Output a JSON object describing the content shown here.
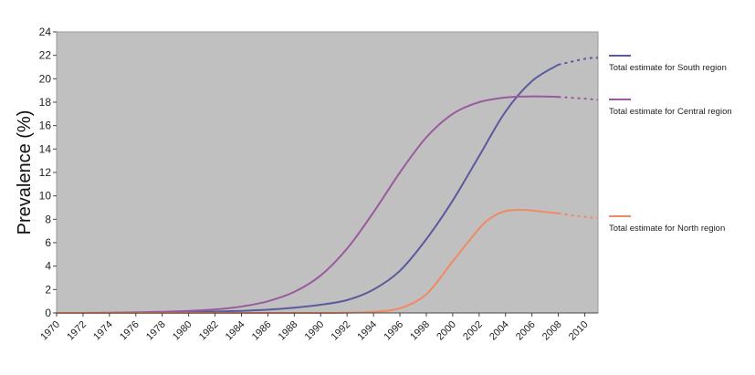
{
  "chart_data": {
    "type": "line",
    "title": "",
    "xlabel": "",
    "ylabel": "Prevalence (%)",
    "xlim": [
      1970,
      2011
    ],
    "ylim": [
      0,
      24
    ],
    "yticks": [
      0,
      2,
      4,
      6,
      8,
      10,
      12,
      14,
      16,
      18,
      20,
      22,
      24
    ],
    "xticks": [
      1970,
      1972,
      1974,
      1976,
      1978,
      1980,
      1982,
      1984,
      1986,
      1988,
      1990,
      1992,
      1994,
      1996,
      1998,
      2000,
      2002,
      2004,
      2006,
      2008,
      2010
    ],
    "grid": false,
    "legend_position": "right",
    "plot_background": "#c0c0c0",
    "projection_start": 2008,
    "series": [
      {
        "name": "Total estimate for South region",
        "color": "#5b5a9c",
        "x": [
          1970,
          1972,
          1974,
          1976,
          1978,
          1980,
          1982,
          1984,
          1986,
          1988,
          1990,
          1992,
          1994,
          1996,
          1998,
          2000,
          2002,
          2004,
          2006,
          2008,
          2010,
          2011
        ],
        "y": [
          0,
          0,
          0,
          0.02,
          0.05,
          0.08,
          0.12,
          0.18,
          0.28,
          0.45,
          0.7,
          1.1,
          2.0,
          3.6,
          6.3,
          9.6,
          13.4,
          17.2,
          19.8,
          21.2,
          21.7,
          21.8
        ]
      },
      {
        "name": "Total estimate for Central region",
        "color": "#9a5a9e",
        "x": [
          1970,
          1972,
          1974,
          1976,
          1978,
          1980,
          1982,
          1984,
          1986,
          1988,
          1990,
          1992,
          1994,
          1996,
          1998,
          2000,
          2002,
          2004,
          2006,
          2008,
          2010,
          2011
        ],
        "y": [
          0,
          0,
          0.02,
          0.05,
          0.1,
          0.18,
          0.3,
          0.55,
          1.0,
          1.8,
          3.2,
          5.5,
          8.6,
          12.0,
          15.0,
          17.0,
          18.0,
          18.4,
          18.5,
          18.45,
          18.3,
          18.2
        ]
      },
      {
        "name": "Total estimate for North region",
        "color": "#f08a66",
        "x": [
          1970,
          1972,
          1974,
          1976,
          1978,
          1980,
          1982,
          1984,
          1986,
          1988,
          1990,
          1992,
          1994,
          1996,
          1998,
          2000,
          2002,
          2003,
          2004,
          2005,
          2006,
          2008,
          2010,
          2011
        ],
        "y": [
          0,
          0,
          0,
          0,
          0,
          0,
          0,
          0,
          0,
          0,
          0,
          0.02,
          0.1,
          0.4,
          1.6,
          4.4,
          7.2,
          8.2,
          8.7,
          8.8,
          8.75,
          8.5,
          8.2,
          8.1
        ]
      }
    ]
  }
}
